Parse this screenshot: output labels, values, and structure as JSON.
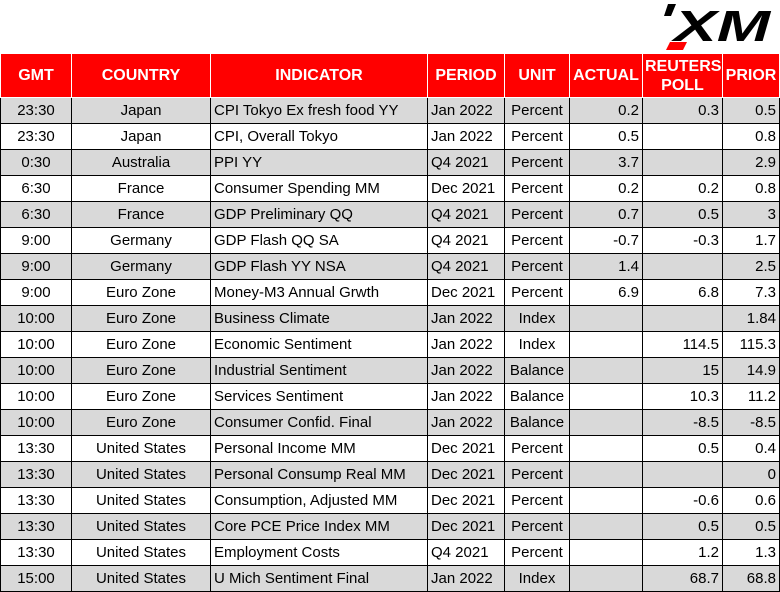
{
  "brand": {
    "logo_text": "XM",
    "logo_color": "#000000",
    "logo_accent": "#ff0000"
  },
  "colors": {
    "header_bg": "#ff0000",
    "header_text": "#ffffff",
    "shade_row": "#d9d9d9",
    "grid": "#000000"
  },
  "table": {
    "headers": {
      "gmt": "GMT",
      "country": "COUNTRY",
      "indicator": "INDICATOR",
      "period": "PERIOD",
      "unit": "UNIT",
      "actual": "ACTUAL",
      "poll_line1": "REUTERS",
      "poll_line2": "POLL",
      "prior": "PRIOR"
    },
    "rows": [
      {
        "gmt": "23:30",
        "country": "Japan",
        "indicator": "CPI Tokyo Ex fresh food YY",
        "period": "Jan 2022",
        "unit": "Percent",
        "actual": "0.2",
        "poll": "0.3",
        "prior": "0.5"
      },
      {
        "gmt": "23:30",
        "country": "Japan",
        "indicator": "CPI, Overall Tokyo",
        "period": "Jan 2022",
        "unit": "Percent",
        "actual": "0.5",
        "poll": "",
        "prior": "0.8"
      },
      {
        "gmt": "0:30",
        "country": "Australia",
        "indicator": "PPI YY",
        "period": "Q4 2021",
        "unit": "Percent",
        "actual": "3.7",
        "poll": "",
        "prior": "2.9"
      },
      {
        "gmt": "6:30",
        "country": "France",
        "indicator": "Consumer Spending MM",
        "period": "Dec 2021",
        "unit": "Percent",
        "actual": "0.2",
        "poll": "0.2",
        "prior": "0.8"
      },
      {
        "gmt": "6:30",
        "country": "France",
        "indicator": "GDP Preliminary QQ",
        "period": "Q4 2021",
        "unit": "Percent",
        "actual": "0.7",
        "poll": "0.5",
        "prior": "3"
      },
      {
        "gmt": "9:00",
        "country": "Germany",
        "indicator": "GDP Flash QQ SA",
        "period": "Q4 2021",
        "unit": "Percent",
        "actual": "-0.7",
        "poll": "-0.3",
        "prior": "1.7"
      },
      {
        "gmt": "9:00",
        "country": "Germany",
        "indicator": "GDP Flash YY NSA",
        "period": "Q4 2021",
        "unit": "Percent",
        "actual": "1.4",
        "poll": "",
        "prior": "2.5"
      },
      {
        "gmt": "9:00",
        "country": "Euro Zone",
        "indicator": "Money-M3 Annual Grwth",
        "period": "Dec 2021",
        "unit": "Percent",
        "actual": "6.9",
        "poll": "6.8",
        "prior": "7.3"
      },
      {
        "gmt": "10:00",
        "country": "Euro Zone",
        "indicator": "Business Climate",
        "period": "Jan 2022",
        "unit": "Index",
        "actual": "",
        "poll": "",
        "prior": "1.84"
      },
      {
        "gmt": "10:00",
        "country": "Euro Zone",
        "indicator": "Economic Sentiment",
        "period": "Jan 2022",
        "unit": "Index",
        "actual": "",
        "poll": "114.5",
        "prior": "115.3"
      },
      {
        "gmt": "10:00",
        "country": "Euro Zone",
        "indicator": "Industrial Sentiment",
        "period": "Jan 2022",
        "unit": "Balance",
        "actual": "",
        "poll": "15",
        "prior": "14.9"
      },
      {
        "gmt": "10:00",
        "country": "Euro Zone",
        "indicator": "Services Sentiment",
        "period": "Jan 2022",
        "unit": "Balance",
        "actual": "",
        "poll": "10.3",
        "prior": "11.2"
      },
      {
        "gmt": "10:00",
        "country": "Euro Zone",
        "indicator": "Consumer Confid. Final",
        "period": "Jan 2022",
        "unit": "Balance",
        "actual": "",
        "poll": "-8.5",
        "prior": "-8.5"
      },
      {
        "gmt": "13:30",
        "country": "United States",
        "indicator": "Personal Income MM",
        "period": "Dec 2021",
        "unit": "Percent",
        "actual": "",
        "poll": "0.5",
        "prior": "0.4"
      },
      {
        "gmt": "13:30",
        "country": "United States",
        "indicator": "Personal Consump Real MM",
        "period": "Dec 2021",
        "unit": "Percent",
        "actual": "",
        "poll": "",
        "prior": "0"
      },
      {
        "gmt": "13:30",
        "country": "United States",
        "indicator": "Consumption, Adjusted MM",
        "period": "Dec 2021",
        "unit": "Percent",
        "actual": "",
        "poll": "-0.6",
        "prior": "0.6"
      },
      {
        "gmt": "13:30",
        "country": "United States",
        "indicator": "Core PCE Price Index MM",
        "period": "Dec 2021",
        "unit": "Percent",
        "actual": "",
        "poll": "0.5",
        "prior": "0.5"
      },
      {
        "gmt": "13:30",
        "country": "United States",
        "indicator": "Employment Costs",
        "period": "Q4 2021",
        "unit": "Percent",
        "actual": "",
        "poll": "1.2",
        "prior": "1.3"
      },
      {
        "gmt": "15:00",
        "country": "United States",
        "indicator": "U Mich Sentiment Final",
        "period": "Jan 2022",
        "unit": "Index",
        "actual": "",
        "poll": "68.7",
        "prior": "68.8"
      }
    ]
  }
}
